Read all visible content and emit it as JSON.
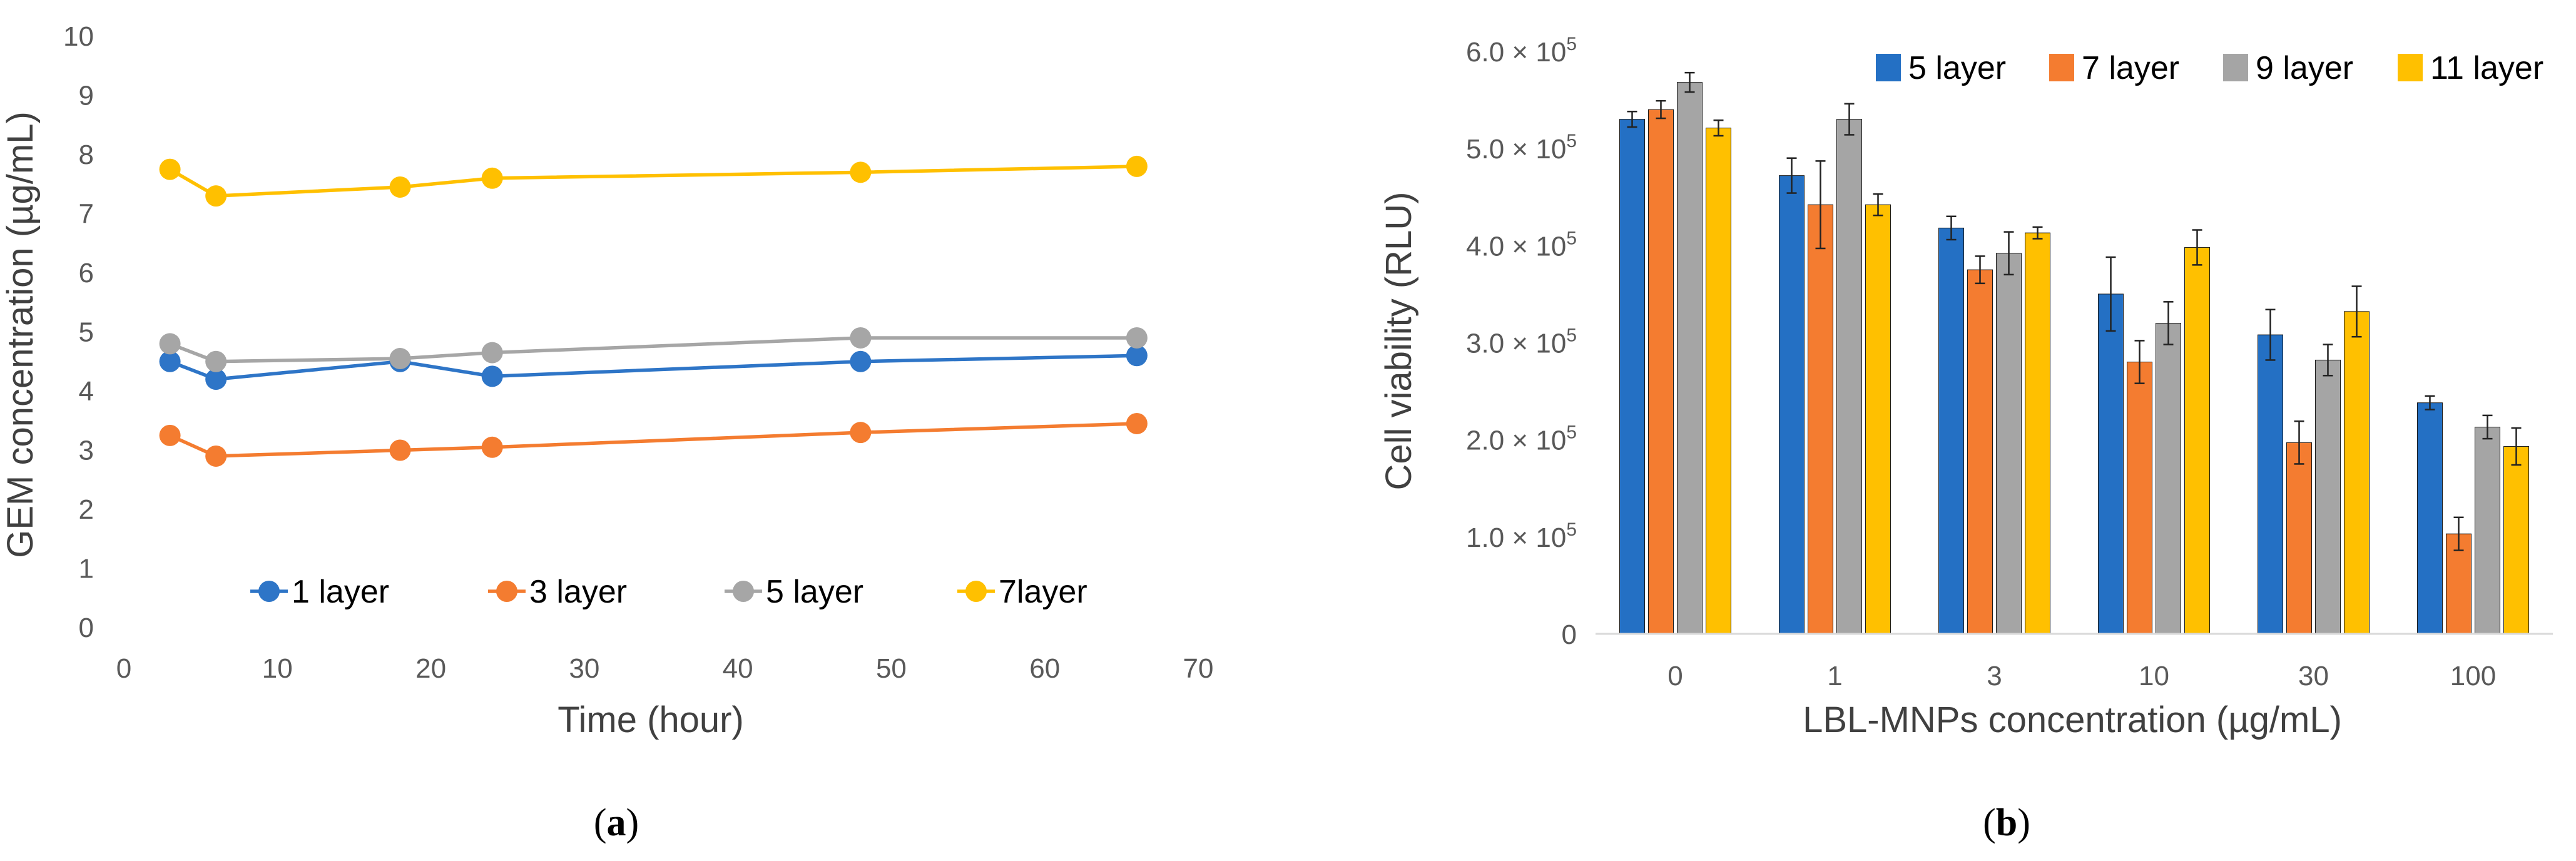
{
  "chart_data": [
    {
      "type": "line",
      "panel_label": "a",
      "title": "",
      "xlabel": "Time (hour)",
      "ylabel": "GEM concentration (µg/mL)",
      "xlim": [
        0,
        70
      ],
      "ylim": [
        0,
        10
      ],
      "xticks": [
        "0",
        "10",
        "20",
        "30",
        "40",
        "50",
        "60",
        "70"
      ],
      "yticks": [
        "0",
        "1",
        "2",
        "3",
        "4",
        "5",
        "6",
        "7",
        "8",
        "9",
        "10"
      ],
      "grid": false,
      "legend_position": "bottom-inside",
      "x": [
        3,
        6,
        18,
        24,
        48,
        66
      ],
      "series": [
        {
          "name": "1 layer",
          "color": "#2E75C7",
          "values": [
            4.5,
            4.2,
            4.5,
            4.25,
            4.5,
            4.6
          ]
        },
        {
          "name": "3 layer",
          "color": "#F47C30",
          "values": [
            3.25,
            2.9,
            3.0,
            3.05,
            3.3,
            3.45
          ]
        },
        {
          "name": "5 layer",
          "color": "#A6A6A6",
          "values": [
            4.8,
            4.5,
            4.55,
            4.65,
            4.9,
            4.9
          ]
        },
        {
          "name": "7layer",
          "color": "#FFC000",
          "values": [
            7.75,
            7.3,
            7.45,
            7.6,
            7.7,
            7.8
          ]
        }
      ]
    },
    {
      "type": "bar",
      "panel_label": "b",
      "title": "",
      "xlabel": "LBL-MNPs concentration (µg/mL)",
      "ylabel": "Cell viability (RLU)",
      "ylim": [
        0,
        600000
      ],
      "yticks": [
        {
          "value": 0,
          "mant": "0",
          "exp": ""
        },
        {
          "value": 100000,
          "mant": "1.0",
          "exp": "5"
        },
        {
          "value": 200000,
          "mant": "2.0",
          "exp": "5"
        },
        {
          "value": 300000,
          "mant": "3.0",
          "exp": "5"
        },
        {
          "value": 400000,
          "mant": "4.0",
          "exp": "5"
        },
        {
          "value": 500000,
          "mant": "5.0",
          "exp": "5"
        },
        {
          "value": 600000,
          "mant": "6.0",
          "exp": "5"
        }
      ],
      "tick_times_symbol": "×",
      "tick_base": "10",
      "grid": false,
      "legend_position": "top-right",
      "categories": [
        "0",
        "1",
        "3",
        "10",
        "30",
        "100"
      ],
      "series": [
        {
          "name": "5 layer",
          "color": "#2470C4",
          "values": [
            530000,
            472000,
            418000,
            350000,
            308000,
            238000
          ],
          "errors": [
            8000,
            18000,
            12000,
            38000,
            26000,
            7000
          ]
        },
        {
          "name": "7 layer",
          "color": "#F47C30",
          "values": [
            540000,
            442000,
            375000,
            280000,
            197000,
            103000
          ],
          "errors": [
            9000,
            45000,
            14000,
            22000,
            22000,
            17000
          ]
        },
        {
          "name": "9 layer",
          "color": "#A5A5A5",
          "values": [
            568000,
            530000,
            392000,
            320000,
            282000,
            213000
          ],
          "errors": [
            10000,
            16000,
            22000,
            22000,
            16000,
            12000
          ]
        },
        {
          "name": "11 layer",
          "color": "#FFC000",
          "values": [
            521000,
            442000,
            413000,
            398000,
            332000,
            193000
          ],
          "errors": [
            8000,
            11000,
            6000,
            18000,
            26000,
            19000
          ]
        }
      ]
    }
  ]
}
